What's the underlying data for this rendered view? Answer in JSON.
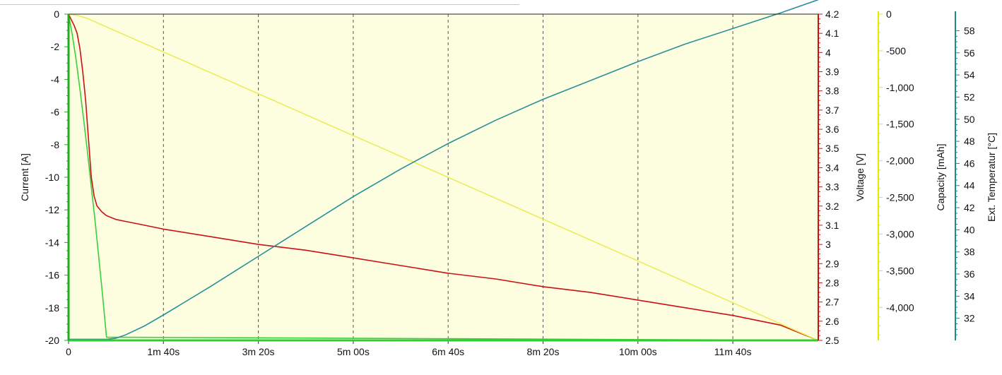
{
  "chart_data": {
    "type": "line",
    "xlabel": "",
    "x_ticks": [
      "0",
      "1m 40s",
      "3m 20s",
      "5m 00s",
      "6m 40s",
      "8m 20s",
      "10m 00s",
      "11m 40s"
    ],
    "x_tick_seconds": [
      0,
      100,
      200,
      300,
      400,
      500,
      600,
      700
    ],
    "xlim_seconds": [
      0,
      790
    ],
    "grid": "vertical dashed",
    "background_color": "#fdfde0",
    "axes": [
      {
        "id": "current",
        "label": "Current [A]",
        "side": "left",
        "color": "#22aa22",
        "ylim": [
          -20,
          0
        ],
        "ticks": [
          0,
          -2,
          -4,
          -6,
          -8,
          -10,
          -12,
          -14,
          -16,
          -18,
          -20
        ],
        "tick_labels": [
          "0",
          "-2",
          "-4",
          "-6",
          "-8",
          "-10",
          "-12",
          "-14",
          "-16",
          "-18",
          "-20"
        ]
      },
      {
        "id": "voltage",
        "label": "Voltage [V]",
        "side": "right",
        "color": "#cc1111",
        "ylim": [
          2.5,
          4.2
        ],
        "ticks": [
          4.2,
          4.1,
          4.0,
          3.9,
          3.8,
          3.7,
          3.6,
          3.5,
          3.4,
          3.3,
          3.2,
          3.1,
          3.0,
          2.9,
          2.8,
          2.7,
          2.6,
          2.5
        ],
        "tick_labels": [
          "4.2",
          "4.1",
          "4",
          "3.9",
          "3.8",
          "3.7",
          "3.6",
          "3.5",
          "3.4",
          "3.3",
          "3.2",
          "3.1",
          "3",
          "2.9",
          "2.8",
          "2.7",
          "2.6",
          "2.5"
        ]
      },
      {
        "id": "capacity",
        "label": "Capacity [mAh]",
        "side": "right",
        "color": "#e6e600",
        "ylim": [
          -4450,
          0
        ],
        "ticks": [
          0,
          -500,
          -1000,
          -1500,
          -2000,
          -2500,
          -3000,
          -3500,
          -4000
        ],
        "tick_labels": [
          "0",
          "-500",
          "-1,000",
          "-1,500",
          "-2,000",
          "-2,500",
          "-3,000",
          "-3,500",
          "-4,000"
        ]
      },
      {
        "id": "temperature",
        "label": "Ext. Temperatur [°C]",
        "side": "right",
        "color": "#1a8a8a",
        "ylim": [
          30,
          59.5
        ],
        "ticks": [
          58,
          56,
          54,
          52,
          50,
          48,
          46,
          44,
          42,
          40,
          38,
          36,
          34,
          32
        ],
        "tick_labels": [
          "58",
          "56",
          "54",
          "52",
          "50",
          "48",
          "46",
          "44",
          "42",
          "40",
          "38",
          "36",
          "34",
          "32"
        ]
      }
    ],
    "series": [
      {
        "axis": "current",
        "color": "#3ccf3c",
        "x": [
          0,
          4,
          8,
          12,
          16,
          20,
          24,
          28,
          32,
          36,
          40,
          790
        ],
        "y": [
          0,
          -1.3,
          -2.8,
          -4.6,
          -6.5,
          -8.5,
          -10.6,
          -12.7,
          -15,
          -17.3,
          -19.8,
          -20
        ]
      },
      {
        "axis": "voltage",
        "color": "#cc1111",
        "x": [
          0,
          3,
          6,
          9,
          12,
          15,
          18,
          21,
          24,
          27,
          30,
          35,
          40,
          50,
          60,
          80,
          100,
          150,
          200,
          250,
          300,
          350,
          400,
          450,
          500,
          550,
          600,
          650,
          700,
          750,
          790
        ],
        "y": [
          4.2,
          4.17,
          4.14,
          4.1,
          4.02,
          3.9,
          3.75,
          3.55,
          3.35,
          3.25,
          3.2,
          3.17,
          3.15,
          3.13,
          3.12,
          3.1,
          3.08,
          3.04,
          3.0,
          2.97,
          2.93,
          2.89,
          2.85,
          2.82,
          2.78,
          2.75,
          2.71,
          2.67,
          2.63,
          2.58,
          2.5
        ]
      },
      {
        "axis": "capacity",
        "color": "#ecec5a",
        "x": [
          0,
          10,
          20,
          790
        ],
        "y": [
          0,
          -20,
          -60,
          -4450
        ]
      },
      {
        "axis": "temperature",
        "color": "#2a8f9a",
        "x": [
          0,
          20,
          40,
          50,
          60,
          80,
          100,
          150,
          200,
          250,
          300,
          350,
          400,
          450,
          500,
          550,
          600,
          650,
          700,
          750,
          790
        ],
        "y": [
          30.1,
          30.1,
          30.1,
          30.2,
          30.5,
          31.3,
          32.3,
          34.9,
          37.6,
          40.3,
          43.0,
          45.5,
          47.8,
          49.9,
          51.8,
          53.5,
          55.2,
          56.8,
          58.2,
          59.6,
          60.8
        ]
      }
    ]
  }
}
